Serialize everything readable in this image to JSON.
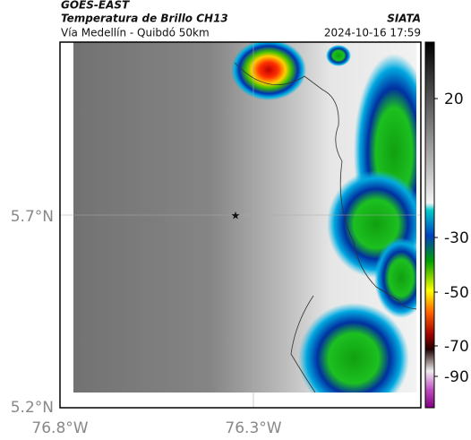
{
  "header": {
    "source": "GOES-EAST",
    "title": "Temperatura de Brillo CH13",
    "subtitle": "Vía Medellín - Quibdó 50km",
    "brand": "SIATA",
    "timestamp": "2024-10-16 17:59"
  },
  "map": {
    "lat_labels": [
      "5.7°N",
      "5.2°N"
    ],
    "lon_labels": [
      "76.8°W",
      "76.3°W"
    ]
  },
  "colorbar": {
    "labels": [
      "20",
      "-30",
      "-50",
      "-70",
      "-90"
    ]
  }
}
